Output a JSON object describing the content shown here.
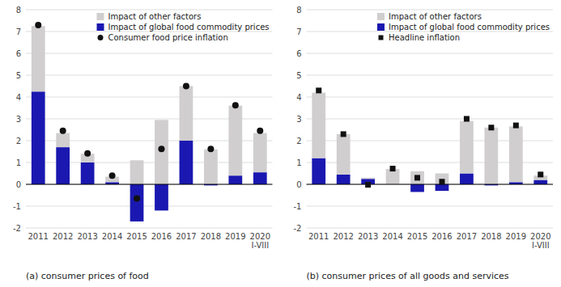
{
  "chart_data": [
    {
      "type": "bar",
      "title": "(a) consumer prices of food",
      "categories": [
        "2011",
        "2012",
        "2013",
        "2014",
        "2015",
        "2016",
        "2017",
        "2018",
        "2019",
        "2020\nI-VIII"
      ],
      "stacked": true,
      "grid": true,
      "legend": "top-right",
      "ylim": [
        -2,
        8
      ],
      "yticks": [
        -2,
        -1,
        0,
        1,
        2,
        3,
        4,
        5,
        6,
        7,
        8
      ],
      "series": [
        {
          "name": "Impact of other factors",
          "color": "#d0cece",
          "values": [
            3.0,
            0.65,
            0.4,
            0.25,
            1.1,
            2.95,
            2.5,
            1.6,
            3.2,
            1.8
          ]
        },
        {
          "name": "Impact of global food commodity prices",
          "color": "#1a18b0",
          "values": [
            4.25,
            1.7,
            1.0,
            0.1,
            -1.7,
            -1.2,
            2.0,
            -0.05,
            0.4,
            0.55
          ]
        },
        {
          "name": "Consumer food price inflation",
          "type": "scatter",
          "marker": "circle",
          "color": "#111111",
          "values": [
            7.3,
            2.45,
            1.42,
            0.4,
            -0.65,
            1.62,
            4.5,
            1.62,
            3.62,
            2.45
          ]
        }
      ]
    },
    {
      "type": "bar",
      "title": "(b) consumer prices of all goods and services",
      "categories": [
        "2011",
        "2012",
        "2013",
        "2014",
        "2015",
        "2016",
        "2017",
        "2018",
        "2019",
        "2020\nI-VIII"
      ],
      "stacked": true,
      "grid": true,
      "legend": "top-right",
      "ylim": [
        -2,
        8
      ],
      "yticks": [
        -2,
        -1,
        0,
        1,
        2,
        3,
        4,
        5,
        6,
        7,
        8
      ],
      "series": [
        {
          "name": "Impact of other factors",
          "color": "#d0cece",
          "values": [
            3.0,
            1.85,
            0.05,
            0.7,
            0.6,
            0.5,
            2.4,
            2.6,
            2.55,
            0.2
          ]
        },
        {
          "name": "Impact of global food commodity prices",
          "color": "#1a18b0",
          "values": [
            1.2,
            0.45,
            0.25,
            0.0,
            -0.35,
            -0.3,
            0.5,
            -0.05,
            0.1,
            0.2
          ]
        },
        {
          "name": "Headline inflation",
          "type": "scatter",
          "marker": "square",
          "color": "#111111",
          "values": [
            4.3,
            2.3,
            -0.02,
            0.72,
            0.3,
            0.12,
            3.0,
            2.6,
            2.7,
            0.45
          ]
        }
      ]
    }
  ]
}
